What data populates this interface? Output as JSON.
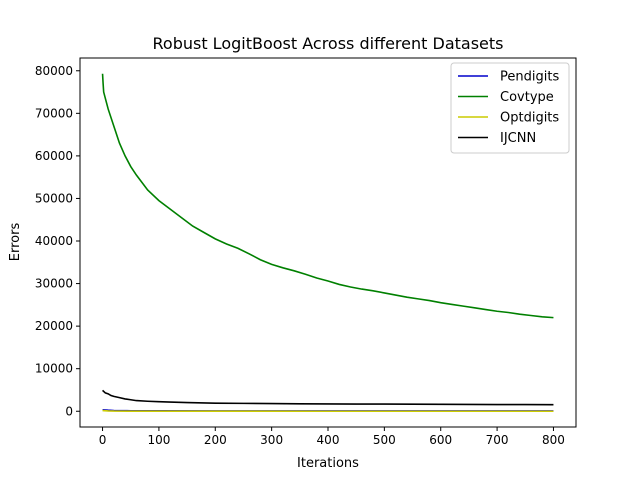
{
  "chart_data": {
    "type": "line",
    "title": "Robust LogitBoost Across different Datasets",
    "xlabel": "Iterations",
    "ylabel": "Errors",
    "xlim": [
      -40,
      840
    ],
    "ylim": [
      -3700,
      83000
    ],
    "xticks": [
      0,
      100,
      200,
      300,
      400,
      500,
      600,
      700,
      800
    ],
    "yticks": [
      0,
      10000,
      20000,
      30000,
      40000,
      50000,
      60000,
      70000,
      80000
    ],
    "grid": false,
    "legend_position": "top-right",
    "series": [
      {
        "name": "Pendigits",
        "color": "#0000cc",
        "x": [
          0,
          10,
          20,
          50,
          100,
          200,
          400,
          600,
          800
        ],
        "y": [
          350,
          250,
          180,
          120,
          100,
          90,
          80,
          75,
          70
        ]
      },
      {
        "name": "Covtype",
        "color": "#008000",
        "x": [
          0,
          1,
          2,
          5,
          10,
          20,
          30,
          40,
          50,
          60,
          80,
          100,
          120,
          140,
          160,
          180,
          200,
          220,
          240,
          260,
          280,
          300,
          320,
          340,
          360,
          380,
          400,
          420,
          440,
          460,
          480,
          500,
          520,
          540,
          560,
          580,
          600,
          620,
          640,
          660,
          680,
          700,
          720,
          740,
          760,
          780,
          800
        ],
        "y": [
          79300,
          77000,
          75000,
          73500,
          71000,
          67000,
          63000,
          60000,
          57500,
          55500,
          52000,
          49500,
          47500,
          45500,
          43500,
          42000,
          40500,
          39300,
          38300,
          37000,
          35600,
          34500,
          33700,
          33000,
          32200,
          31300,
          30600,
          29800,
          29200,
          28700,
          28300,
          27800,
          27300,
          26800,
          26400,
          26000,
          25500,
          25100,
          24700,
          24300,
          23900,
          23500,
          23200,
          22800,
          22500,
          22200,
          22000
        ]
      },
      {
        "name": "Optdigits",
        "color": "#cccc00",
        "x": [
          0,
          10,
          20,
          50,
          100,
          200,
          400,
          600,
          800
        ],
        "y": [
          150,
          80,
          40,
          20,
          10,
          5,
          3,
          2,
          2
        ]
      },
      {
        "name": "IJCNN",
        "color": "#000000",
        "x": [
          0,
          5,
          10,
          15,
          20,
          30,
          40,
          50,
          60,
          80,
          100,
          120,
          150,
          200,
          250,
          300,
          350,
          400,
          450,
          500,
          550,
          600,
          650,
          700,
          750,
          800
        ],
        "y": [
          4900,
          4300,
          4100,
          3700,
          3500,
          3200,
          2900,
          2700,
          2500,
          2350,
          2250,
          2150,
          2050,
          1900,
          1850,
          1800,
          1750,
          1720,
          1700,
          1680,
          1650,
          1620,
          1600,
          1580,
          1560,
          1550
        ]
      }
    ]
  }
}
